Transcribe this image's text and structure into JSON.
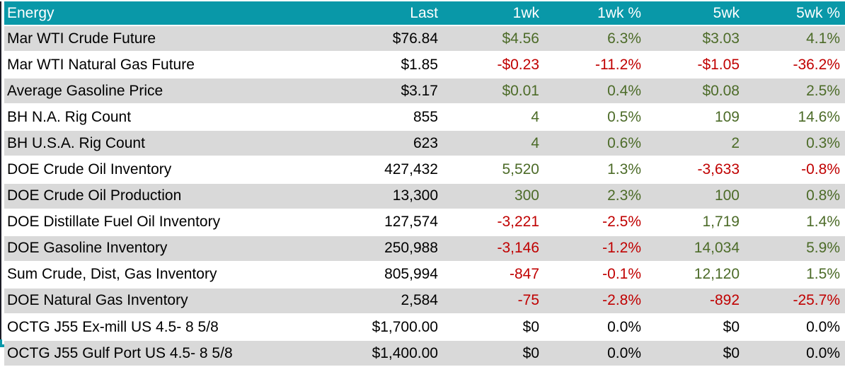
{
  "colors": {
    "header_bg": "#0998a8",
    "header_text": "#ffffff",
    "row_alt_bg": "#d9d9d9",
    "row_bg": "#ffffff",
    "positive": "#4c6b28",
    "negative": "#c00000",
    "neutral": "#000000",
    "left_border": "#1b1b26"
  },
  "table": {
    "columns": [
      {
        "label": "Energy"
      },
      {
        "label": "Last"
      },
      {
        "label": "1wk"
      },
      {
        "label": "1wk %"
      },
      {
        "label": "5wk"
      },
      {
        "label": "5wk %"
      }
    ],
    "rows": [
      {
        "label": "Mar WTI Crude Future",
        "last": "$76.84",
        "cells": [
          {
            "v": "$4.56",
            "t": "pos"
          },
          {
            "v": "6.3%",
            "t": "pos"
          },
          {
            "v": "$3.03",
            "t": "pos"
          },
          {
            "v": "4.1%",
            "t": "pos"
          }
        ]
      },
      {
        "label": "Mar WTI Natural Gas Future",
        "last": "$1.85",
        "cells": [
          {
            "v": "-$0.23",
            "t": "neg"
          },
          {
            "v": "-11.2%",
            "t": "neg"
          },
          {
            "v": "-$1.05",
            "t": "neg"
          },
          {
            "v": "-36.2%",
            "t": "neg"
          }
        ]
      },
      {
        "label": "Average Gasoline Price",
        "last": "$3.17",
        "cells": [
          {
            "v": "$0.01",
            "t": "pos"
          },
          {
            "v": "0.4%",
            "t": "pos"
          },
          {
            "v": "$0.08",
            "t": "pos"
          },
          {
            "v": "2.5%",
            "t": "pos"
          }
        ]
      },
      {
        "label": "BH N.A. Rig Count",
        "last": "855",
        "cells": [
          {
            "v": "4",
            "t": "pos"
          },
          {
            "v": "0.5%",
            "t": "pos"
          },
          {
            "v": "109",
            "t": "pos"
          },
          {
            "v": "14.6%",
            "t": "pos"
          }
        ]
      },
      {
        "label": "BH U.S.A. Rig Count",
        "last": "623",
        "cells": [
          {
            "v": "4",
            "t": "pos"
          },
          {
            "v": "0.6%",
            "t": "pos"
          },
          {
            "v": "2",
            "t": "pos"
          },
          {
            "v": "0.3%",
            "t": "pos"
          }
        ]
      },
      {
        "label": "DOE Crude Oil Inventory",
        "last": "427,432",
        "cells": [
          {
            "v": "5,520",
            "t": "pos"
          },
          {
            "v": "1.3%",
            "t": "pos"
          },
          {
            "v": "-3,633",
            "t": "neg"
          },
          {
            "v": "-0.8%",
            "t": "neg"
          }
        ]
      },
      {
        "label": "DOE Crude Oil Production",
        "last": "13,300",
        "cells": [
          {
            "v": "300",
            "t": "pos"
          },
          {
            "v": "2.3%",
            "t": "pos"
          },
          {
            "v": "100",
            "t": "pos"
          },
          {
            "v": "0.8%",
            "t": "pos"
          }
        ]
      },
      {
        "label": "DOE Distillate Fuel Oil Inventory",
        "last": "127,574",
        "cells": [
          {
            "v": "-3,221",
            "t": "neg"
          },
          {
            "v": "-2.5%",
            "t": "neg"
          },
          {
            "v": "1,719",
            "t": "pos"
          },
          {
            "v": "1.4%",
            "t": "pos"
          }
        ]
      },
      {
        "label": "DOE Gasoline Inventory",
        "last": "250,988",
        "cells": [
          {
            "v": "-3,146",
            "t": "neg"
          },
          {
            "v": "-1.2%",
            "t": "neg"
          },
          {
            "v": "14,034",
            "t": "pos"
          },
          {
            "v": "5.9%",
            "t": "pos"
          }
        ]
      },
      {
        "label": "Sum Crude, Dist, Gas Inventory",
        "last": "805,994",
        "cells": [
          {
            "v": "-847",
            "t": "neg"
          },
          {
            "v": "-0.1%",
            "t": "neg"
          },
          {
            "v": "12,120",
            "t": "pos"
          },
          {
            "v": "1.5%",
            "t": "pos"
          }
        ]
      },
      {
        "label": "DOE Natural Gas Inventory",
        "last": "2,584",
        "cells": [
          {
            "v": "-75",
            "t": "neg"
          },
          {
            "v": "-2.8%",
            "t": "neg"
          },
          {
            "v": "-892",
            "t": "neg"
          },
          {
            "v": "-25.7%",
            "t": "neg"
          }
        ]
      },
      {
        "label": "OCTG J55 Ex-mill US 4.5- 8 5/8",
        "last": "$1,700.00",
        "cells": [
          {
            "v": "$0",
            "t": "flat"
          },
          {
            "v": "0.0%",
            "t": "flat"
          },
          {
            "v": "$0",
            "t": "flat"
          },
          {
            "v": "0.0%",
            "t": "flat"
          }
        ]
      },
      {
        "label": "OCTG J55 Gulf Port US 4.5- 8 5/8",
        "last": "$1,400.00",
        "cells": [
          {
            "v": "$0",
            "t": "flat"
          },
          {
            "v": "0.0%",
            "t": "flat"
          },
          {
            "v": "$0",
            "t": "flat"
          },
          {
            "v": "0.0%",
            "t": "flat"
          }
        ]
      }
    ]
  }
}
